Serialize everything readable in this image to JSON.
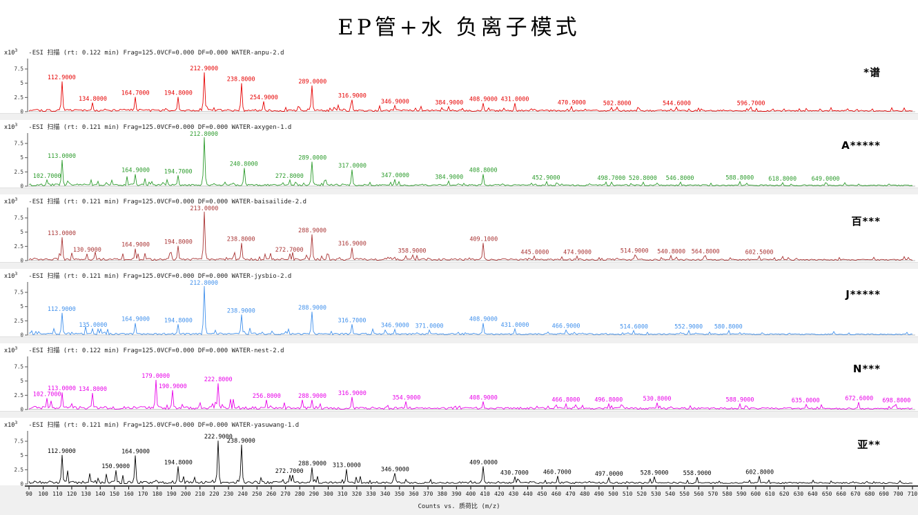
{
  "title": "EP管+水 负离子模式",
  "x_axis": {
    "label": "Counts vs. 质荷比 (m/z)",
    "min": 90,
    "max": 710,
    "tick_step": 10
  },
  "y_axis": {
    "scale_label": "x10",
    "exponent": "3",
    "ticks": [
      "7.5",
      "5",
      "2.5",
      "0"
    ]
  },
  "chart_data": [
    {
      "type": "line",
      "kind": "mass-spectrum",
      "header": "-ESI 扫描 (rt: 0.122 min) Frag=125.0VCF=0.000 DF=0.000 WATER-anpu-2.d",
      "side_label": "*谱",
      "color": "#e60000",
      "noise": 1.0,
      "xlim": [
        90,
        710
      ],
      "ylim": [
        0,
        9.2
      ],
      "peaks": [
        [
          112.9,
          5.3
        ],
        [
          134.8,
          1.6
        ],
        [
          164.7,
          2.6
        ],
        [
          194.8,
          2.6
        ],
        [
          212.9,
          6.9
        ],
        [
          238.8,
          5.0
        ],
        [
          254.9,
          1.8
        ],
        [
          289.0,
          4.6
        ],
        [
          316.9,
          2.1
        ],
        [
          346.9,
          1.1
        ],
        [
          384.9,
          0.9
        ],
        [
          408.9,
          1.5
        ],
        [
          431.0,
          1.5
        ],
        [
          470.9,
          0.9
        ],
        [
          502.8,
          0.8
        ],
        [
          544.6,
          0.8
        ],
        [
          596.7,
          0.8
        ]
      ]
    },
    {
      "type": "line",
      "kind": "mass-spectrum",
      "header": "-ESI 扫描 (rt: 0.121 min) Frag=125.0VCF=0.000 DF=0.000 WATER-axygen-1.d",
      "side_label": "A*****",
      "color": "#2b9b2b",
      "noise": 0.9,
      "xlim": [
        90,
        710
      ],
      "ylim": [
        0,
        9.2
      ],
      "peaks": [
        [
          102.7,
          1.1
        ],
        [
          113.0,
          4.6
        ],
        [
          164.9,
          2.1
        ],
        [
          194.7,
          1.9
        ],
        [
          212.8,
          8.6
        ],
        [
          240.8,
          3.2
        ],
        [
          272.8,
          1.1
        ],
        [
          289.0,
          4.3
        ],
        [
          317.0,
          2.9
        ],
        [
          347.0,
          1.2
        ],
        [
          384.9,
          0.9
        ],
        [
          408.8,
          2.1
        ],
        [
          452.9,
          0.8
        ],
        [
          498.7,
          0.7
        ],
        [
          520.8,
          0.7
        ],
        [
          546.8,
          0.7
        ],
        [
          588.8,
          0.8
        ],
        [
          618.8,
          0.6
        ],
        [
          649.0,
          0.6
        ]
      ]
    },
    {
      "type": "line",
      "kind": "mass-spectrum",
      "header": "-ESI 扫描 (rt: 0.121 min) Frag=125.0VCF=0.000 DF=0.000 WATER-baisailide-2.d",
      "side_label": "百***",
      "color": "#a93434",
      "noise": 1.0,
      "xlim": [
        90,
        710
      ],
      "ylim": [
        0,
        9.2
      ],
      "peaks": [
        [
          113.0,
          4.1
        ],
        [
          130.9,
          1.2
        ],
        [
          164.9,
          2.1
        ],
        [
          194.8,
          2.6
        ],
        [
          213.0,
          8.6
        ],
        [
          238.8,
          3.1
        ],
        [
          272.7,
          1.2
        ],
        [
          288.9,
          4.6
        ],
        [
          316.9,
          2.3
        ],
        [
          358.9,
          1.0
        ],
        [
          409.1,
          3.1
        ],
        [
          445.0,
          0.8
        ],
        [
          474.9,
          0.8
        ],
        [
          514.9,
          1.0
        ],
        [
          540.8,
          0.9
        ],
        [
          564.8,
          0.9
        ],
        [
          602.5,
          0.8
        ]
      ]
    },
    {
      "type": "line",
      "kind": "mass-spectrum",
      "header": "-ESI 扫描 (rt: 0.121 min) Frag=125.0VCF=0.000 DF=0.000 WATER-jysbio-2.d",
      "side_label": "J*****",
      "color": "#4090ec",
      "noise": 0.9,
      "xlim": [
        90,
        710
      ],
      "ylim": [
        0,
        9.2
      ],
      "peaks": [
        [
          112.9,
          3.9
        ],
        [
          135.0,
          1.1
        ],
        [
          164.9,
          2.1
        ],
        [
          194.8,
          1.9
        ],
        [
          212.8,
          8.6
        ],
        [
          238.9,
          3.6
        ],
        [
          288.9,
          4.1
        ],
        [
          316.7,
          1.9
        ],
        [
          346.9,
          1.0
        ],
        [
          371.0,
          0.9
        ],
        [
          408.9,
          2.1
        ],
        [
          431.0,
          1.1
        ],
        [
          466.9,
          0.9
        ],
        [
          514.6,
          0.8
        ],
        [
          552.9,
          0.8
        ],
        [
          580.8,
          0.8
        ]
      ]
    },
    {
      "type": "line",
      "kind": "mass-spectrum",
      "header": "-ESI 扫描 (rt: 0.122 min) Frag=125.0VCF=0.000 DF=0.000 WATER-nest-2.d",
      "side_label": "N***",
      "color": "#e800e8",
      "noise": 1.3,
      "xlim": [
        90,
        710
      ],
      "ylim": [
        0,
        9.2
      ],
      "peaks": [
        [
          102.7,
          2.0
        ],
        [
          113.0,
          3.0
        ],
        [
          134.8,
          2.9
        ],
        [
          179.0,
          5.2
        ],
        [
          190.9,
          3.4
        ],
        [
          222.8,
          4.6
        ],
        [
          256.8,
          1.7
        ],
        [
          288.9,
          1.7
        ],
        [
          316.9,
          2.2
        ],
        [
          354.9,
          1.4
        ],
        [
          408.9,
          1.4
        ],
        [
          466.8,
          1.0
        ],
        [
          496.8,
          1.0
        ],
        [
          530.8,
          1.2
        ],
        [
          588.9,
          1.0
        ],
        [
          635.0,
          0.9
        ],
        [
          672.6,
          1.3
        ],
        [
          698.8,
          0.9
        ]
      ]
    },
    {
      "type": "line",
      "kind": "mass-spectrum",
      "header": "-ESI 扫描 (rt: 0.121 min) Frag=125.0VCF=0.000 DF=0.000 WATER-yasuwang-1.d",
      "side_label": "亚**",
      "color": "#000000",
      "noise": 1.2,
      "xlim": [
        90,
        710
      ],
      "ylim": [
        0,
        9.2
      ],
      "peaks": [
        [
          112.9,
          5.1
        ],
        [
          150.9,
          2.4
        ],
        [
          164.9,
          5.0
        ],
        [
          194.8,
          3.1
        ],
        [
          222.9,
          7.6
        ],
        [
          238.9,
          6.9
        ],
        [
          272.7,
          1.6
        ],
        [
          288.9,
          2.9
        ],
        [
          313.0,
          2.6
        ],
        [
          346.9,
          1.9
        ],
        [
          409.0,
          3.1
        ],
        [
          430.7,
          1.3
        ],
        [
          460.7,
          1.4
        ],
        [
          497.0,
          1.1
        ],
        [
          528.9,
          1.3
        ],
        [
          558.9,
          1.2
        ],
        [
          602.8,
          1.4
        ]
      ]
    }
  ]
}
